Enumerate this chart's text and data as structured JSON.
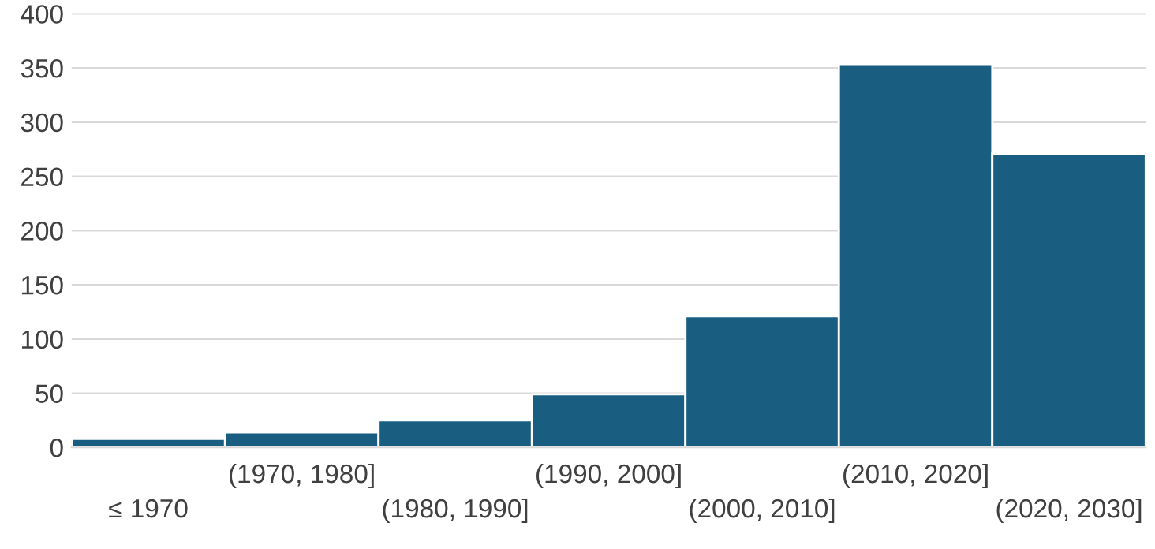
{
  "chart_data": {
    "type": "bar",
    "categories": [
      "≤ 1970",
      "(1970, 1980]",
      "(1980, 1990]",
      "(1990, 2000]",
      "(2000, 2010]",
      "(2010, 2020]",
      "(2020, 2030]"
    ],
    "values": [
      8,
      14,
      25,
      49,
      121,
      353,
      271
    ],
    "color": "#195e80",
    "ylim": [
      0,
      400
    ],
    "yticks": [
      0,
      50,
      100,
      150,
      200,
      250,
      300,
      350,
      400
    ],
    "grid": "y"
  }
}
